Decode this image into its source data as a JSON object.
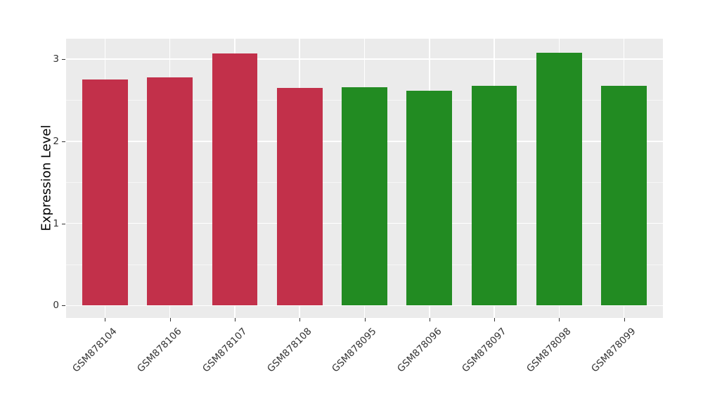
{
  "chart_data": {
    "type": "bar",
    "title": "",
    "xlabel": "",
    "ylabel": "Expression Level",
    "categories": [
      "GSM878104",
      "GSM878106",
      "GSM878107",
      "GSM878108",
      "GSM878095",
      "GSM878096",
      "GSM878097",
      "GSM878098",
      "GSM878099"
    ],
    "values": [
      2.75,
      2.78,
      3.07,
      2.65,
      2.66,
      2.62,
      2.68,
      3.08,
      2.68
    ],
    "bar_colors": [
      "#C2304A",
      "#C2304A",
      "#C2304A",
      "#C2304A",
      "#228B22",
      "#228B22",
      "#228B22",
      "#228B22",
      "#228B22"
    ],
    "y_ticks": [
      0,
      1,
      2,
      3
    ],
    "y_minor_ticks": [
      0.5,
      1.5,
      2.5
    ],
    "ylim": [
      -0.15,
      3.25
    ],
    "bar_width_fraction": 0.7,
    "grid": true,
    "legend": false,
    "colors": {
      "red_group": "#C2304A",
      "green_group": "#228B22",
      "plot_background": "#EBEBEB",
      "grid": "#FFFFFF",
      "tick_text": "#333333",
      "axis_title_text": "#000000",
      "figure_background": "#FFFFFF"
    }
  }
}
